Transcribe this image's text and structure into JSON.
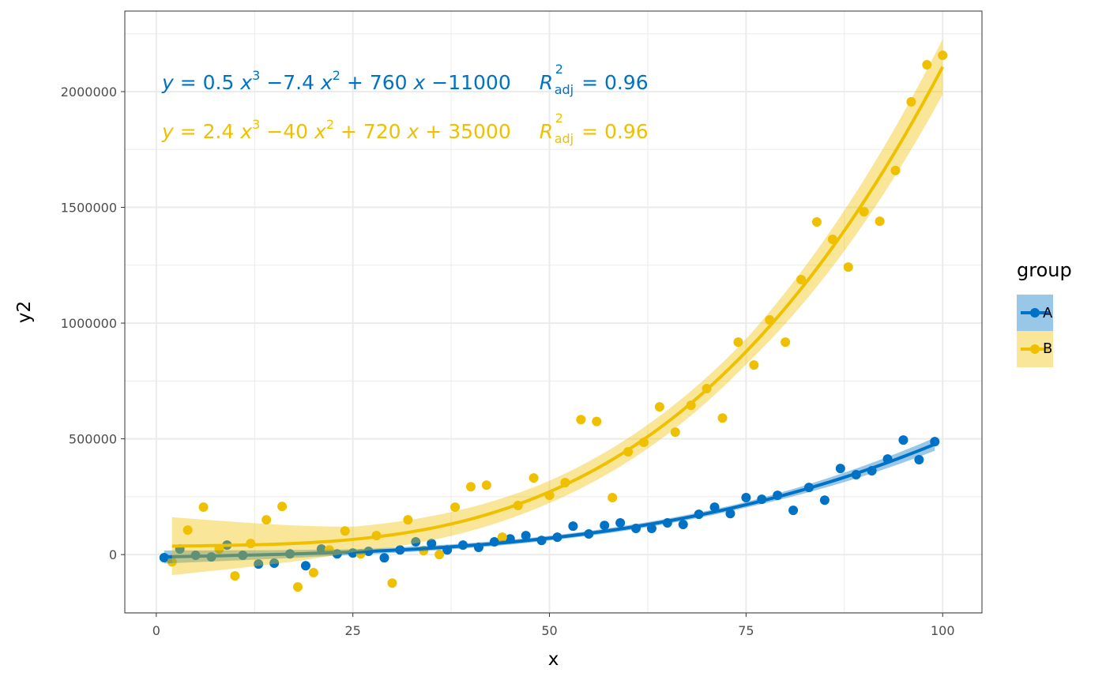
{
  "chart_data": {
    "type": "scatter",
    "title": "",
    "xlabel": "x",
    "ylabel": "y2",
    "xlim": [
      -4,
      105
    ],
    "ylim": [
      -252000,
      2348000
    ],
    "xticks": [
      0,
      25,
      50,
      75,
      100
    ],
    "xtick_labels": [
      "0",
      "25",
      "50",
      "75",
      "100"
    ],
    "yticks": [
      0,
      500000,
      1000000,
      1500000,
      2000000
    ],
    "ytick_labels": [
      "0",
      "500000",
      "1000000",
      "1500000",
      "2000000"
    ],
    "grid": true,
    "legend": {
      "title": "group",
      "position": "right",
      "entries": [
        "A",
        "B"
      ]
    },
    "series": [
      {
        "name": "A",
        "color": "#0072C6",
        "band_color": "#0072C6",
        "x": [
          1,
          3,
          5,
          7,
          9,
          11,
          13,
          15,
          17,
          19,
          21,
          23,
          25,
          27,
          29,
          31,
          33,
          35,
          37,
          39,
          41,
          43,
          45,
          47,
          49,
          51,
          53,
          55,
          57,
          59,
          61,
          63,
          65,
          67,
          69,
          71,
          73,
          75,
          77,
          79,
          81,
          83,
          85,
          87,
          89,
          91,
          93,
          95,
          97,
          99
        ],
        "y": [
          -13000,
          24000,
          -3000,
          -10000,
          41000,
          -3000,
          -41000,
          -37000,
          3000,
          -48000,
          24000,
          3000,
          7000,
          14000,
          -14000,
          20000,
          55000,
          48000,
          20000,
          41000,
          31000,
          55000,
          68000,
          82000,
          61000,
          75000,
          123000,
          89000,
          126000,
          137000,
          113000,
          113000,
          137000,
          130000,
          174000,
          205000,
          177000,
          246000,
          239000,
          256000,
          191000,
          290000,
          235000,
          372000,
          345000,
          362000,
          413000,
          495000,
          410000,
          488000
        ],
        "fit": {
          "coefficients": [
            0.5,
            -7.4,
            760,
            -11000
          ],
          "x_range": [
            1,
            99
          ]
        },
        "ci_halfwidth": {
          "x": [
            1,
            25,
            50,
            75,
            99
          ],
          "y": [
            28000,
            12000,
            10000,
            12000,
            28000
          ]
        },
        "equation": {
          "c3": "0.5",
          "c2": "−7.4",
          "c1": "+ 760",
          "c0": "−11000",
          "r2": "= 0.96"
        }
      },
      {
        "name": "B",
        "color": "#EFC000",
        "band_color": "#EFC000",
        "x": [
          2,
          4,
          6,
          8,
          10,
          12,
          14,
          16,
          18,
          20,
          22,
          24,
          26,
          28,
          30,
          32,
          34,
          36,
          38,
          40,
          42,
          44,
          46,
          48,
          50,
          52,
          54,
          56,
          58,
          60,
          62,
          64,
          66,
          68,
          70,
          72,
          74,
          76,
          78,
          80,
          82,
          84,
          86,
          88,
          90,
          92,
          94,
          96,
          98,
          100
        ],
        "y": [
          -31000,
          106000,
          205000,
          24000,
          -92000,
          48000,
          150000,
          208000,
          -140000,
          -78000,
          20000,
          102000,
          3000,
          82000,
          -123000,
          150000,
          17000,
          0,
          205000,
          293000,
          300000,
          75000,
          212000,
          331000,
          256000,
          311000,
          583000,
          575000,
          246000,
          444000,
          485000,
          638000,
          529000,
          645000,
          717000,
          590000,
          918000,
          819000,
          1014000,
          918000,
          1188000,
          1437000,
          1362000,
          1242000,
          1481000,
          1440000,
          1659000,
          1956000,
          2116000,
          2157000
        ],
        "fit": {
          "coefficients": [
            2.4,
            -40,
            720,
            35000
          ],
          "x_range": [
            2,
            100
          ]
        },
        "ci_halfwidth": {
          "x": [
            2,
            25,
            50,
            75,
            100
          ],
          "y": [
            125000,
            55000,
            48000,
            55000,
            120000
          ]
        },
        "equation": {
          "c3": "2.4",
          "c2": "−40",
          "c1": "+ 720",
          "c0": "+ 35000",
          "r2": "= 0.96"
        }
      }
    ]
  },
  "annotation": {
    "y_var": "y",
    "eq_sign": "=",
    "x_var": "x",
    "r_var": "R",
    "adj": "adj",
    "exp3": "3",
    "exp2": "2"
  }
}
